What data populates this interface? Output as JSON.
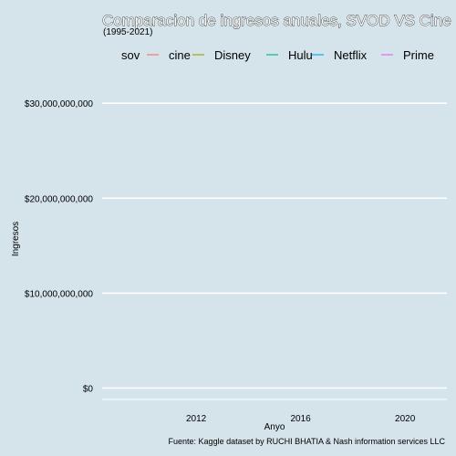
{
  "chart_data": {
    "type": "line",
    "title": "Comparacion de ingresos anuales, SVOD VS Cine",
    "subtitle": "(1995-2021)",
    "xlabel": "Anyo",
    "ylabel": "Ingresos",
    "caption": "Fuente: Kaggle dataset by RUCHI BHATIA & Nash information services LLC",
    "x_ticks": [
      2012,
      2016,
      2020
    ],
    "y_ticks": [
      "$0",
      "$10,000,000,000",
      "$20,000,000,000",
      "$30,000,000,000"
    ],
    "y_tick_values": [
      0,
      10000000000,
      20000000000,
      30000000000
    ],
    "xlim": [
      2008.4,
      2021.6
    ],
    "ylim": [
      -1200000000,
      33000000000
    ],
    "grid": true,
    "legend_position": "top",
    "legend": {
      "title": "sov",
      "entries": [
        {
          "name": "cine",
          "color": "#f8766d"
        },
        {
          "name": "Disney",
          "color": "#a3a500"
        },
        {
          "name": "Hulu",
          "color": "#00bf7d"
        },
        {
          "name": "Netflix",
          "color": "#00b0f6"
        },
        {
          "name": "Prime",
          "color": "#e76bf3"
        }
      ]
    },
    "series": []
  }
}
